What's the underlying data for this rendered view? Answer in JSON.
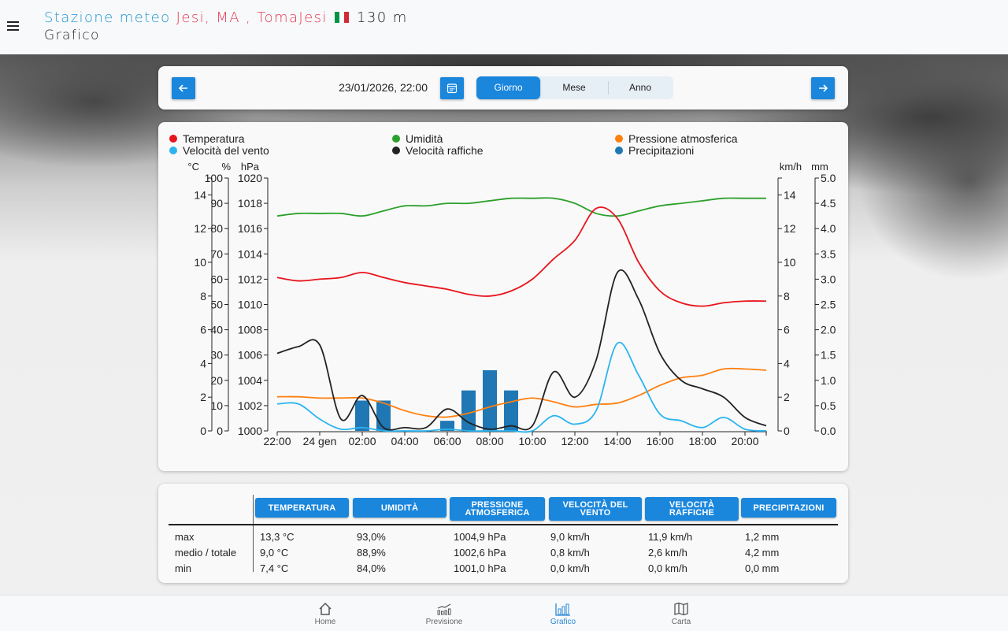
{
  "header": {
    "prefix": "Stazione meteo",
    "location": "Jesi, MA , TomaJesi",
    "flag_colors": [
      "#009246",
      "#ffffff",
      "#ce2b37"
    ],
    "altitude": "130 m",
    "page_title": "Grafico",
    "menu_icon": "hamburger-menu-icon"
  },
  "navigator": {
    "prev_icon": "arrow-left-icon",
    "next_icon": "arrow-right-icon",
    "calendar_icon": "calendar-icon",
    "date": "23/01/2026, 22:00",
    "periods": [
      {
        "label": "Giorno",
        "active": true
      },
      {
        "label": "Mese",
        "active": false
      },
      {
        "label": "Anno",
        "active": false
      }
    ]
  },
  "legend": [
    {
      "label": "Temperatura",
      "color": "#e8141c"
    },
    {
      "label": "Umidità",
      "color": "#2ca02c"
    },
    {
      "label": "Pressione atmosferica",
      "color": "#ff7f0e"
    },
    {
      "label": "Velocità del vento",
      "color": "#2bb4f0"
    },
    {
      "label": "Velocità raffiche",
      "color": "#222222"
    },
    {
      "label": "Precipitazioni",
      "color": "#1f77b4"
    }
  ],
  "chart_data": {
    "type": "line",
    "title": "",
    "x": [
      "22:00",
      "23:00",
      "24 gen",
      "01:00",
      "02:00",
      "03:00",
      "04:00",
      "05:00",
      "06:00",
      "07:00",
      "08:00",
      "09:00",
      "10:00",
      "11:00",
      "12:00",
      "13:00",
      "14:00",
      "15:00",
      "16:00",
      "17:00",
      "18:00",
      "19:00",
      "20:00",
      "21:00"
    ],
    "x_tick_labels": [
      "22:00",
      "24 gen",
      "02:00",
      "04:00",
      "06:00",
      "08:00",
      "10:00",
      "12:00",
      "14:00",
      "16:00",
      "18:00",
      "20:00"
    ],
    "axes": {
      "temperature": {
        "unit": "°C",
        "side": "left",
        "range": [
          0,
          15
        ],
        "ticks": [
          0,
          2,
          4,
          6,
          8,
          10,
          12,
          14
        ]
      },
      "humidity": {
        "unit": "%",
        "side": "left",
        "range": [
          0,
          100
        ],
        "ticks": [
          0,
          10,
          20,
          30,
          40,
          50,
          60,
          70,
          80,
          90,
          100
        ]
      },
      "pressure": {
        "unit": "hPa",
        "side": "left",
        "range": [
          1000,
          1020
        ],
        "ticks": [
          1000,
          1002,
          1004,
          1006,
          1008,
          1010,
          1012,
          1014,
          1016,
          1018,
          1020
        ]
      },
      "wind": {
        "unit": "km/h",
        "side": "right",
        "range": [
          0,
          15
        ],
        "ticks": [
          0,
          2,
          4,
          6,
          8,
          10,
          12,
          14
        ]
      },
      "precip": {
        "unit": "mm",
        "side": "right",
        "range": [
          0,
          5
        ],
        "ticks": [
          "0.0",
          "0.5",
          "1.0",
          "1.5",
          "2.0",
          "2.5",
          "3.0",
          "3.5",
          "4.0",
          "4.5",
          "5.0"
        ]
      }
    },
    "series": [
      {
        "name": "Temperatura",
        "axis": "temperature",
        "kind": "line",
        "color": "#e8141c",
        "values": [
          9.1,
          8.9,
          9.0,
          9.1,
          9.4,
          9.1,
          8.8,
          8.6,
          8.4,
          8.1,
          8.0,
          8.3,
          9.0,
          10.2,
          11.3,
          13.2,
          12.6,
          10.0,
          8.3,
          7.6,
          7.4,
          7.6,
          7.7,
          7.7
        ]
      },
      {
        "name": "Umidità",
        "axis": "humidity",
        "kind": "line",
        "color": "#2ca02c",
        "values": [
          85,
          86,
          86,
          86,
          85,
          87,
          89,
          89,
          90,
          90,
          91,
          92,
          92,
          92,
          90,
          86,
          85,
          87,
          89,
          90,
          91,
          92,
          92,
          92
        ]
      },
      {
        "name": "Pressione atmosferica",
        "axis": "pressure",
        "kind": "line",
        "color": "#ff7f0e",
        "values": [
          1002.7,
          1002.7,
          1002.6,
          1002.6,
          1002.6,
          1002.2,
          1001.6,
          1001.2,
          1001.1,
          1001.4,
          1001.9,
          1002.3,
          1002.6,
          1002.3,
          1001.9,
          1002.1,
          1002.2,
          1002.8,
          1003.6,
          1004.2,
          1004.4,
          1004.9,
          1004.9,
          1004.8
        ]
      },
      {
        "name": "Velocità del vento",
        "axis": "wind",
        "kind": "line",
        "color": "#2bb4f0",
        "values": [
          1.6,
          1.6,
          0.7,
          0.1,
          0.2,
          0.0,
          0.0,
          0.0,
          0.1,
          0.0,
          0.0,
          0.0,
          0.0,
          0.9,
          0.4,
          1.2,
          5.2,
          3.3,
          1.0,
          0.6,
          0.2,
          0.8,
          0.1,
          0.0
        ]
      },
      {
        "name": "Velocità raffiche",
        "axis": "wind",
        "kind": "line",
        "color": "#222222",
        "values": [
          4.6,
          5.0,
          5.1,
          0.7,
          2.1,
          0.2,
          0.2,
          0.2,
          1.3,
          0.5,
          0.1,
          0.3,
          0.3,
          3.5,
          2.0,
          4.2,
          9.4,
          7.8,
          4.6,
          3.0,
          2.5,
          2.0,
          0.8,
          0.3
        ]
      },
      {
        "name": "Precipitazioni",
        "axis": "precip",
        "kind": "bar",
        "color": "#1f77b4",
        "values": [
          0.0,
          0.0,
          0.0,
          0.0,
          0.6,
          0.6,
          0.0,
          0.0,
          0.2,
          0.8,
          1.2,
          0.8,
          0.0,
          0.0,
          0.0,
          0.0,
          0.0,
          0.0,
          0.0,
          0.0,
          0.0,
          0.0,
          0.0,
          0.0
        ]
      }
    ]
  },
  "stats": {
    "columns": [
      "TEMPERATURA",
      "UMIDITÀ",
      "PRESSIONE ATMOSFERICA",
      "VELOCITÀ DEL VENTO",
      "VELOCITÀ RAFFICHE",
      "PRECIPITAZIONI"
    ],
    "rows": [
      {
        "label": "max",
        "values": [
          "13,3 °C",
          "93,0%",
          "1004,9 hPa",
          "9,0 km/h",
          "11,9 km/h",
          "1,2 mm"
        ]
      },
      {
        "label": "medio / totale",
        "values": [
          "9,0 °C",
          "88,9%",
          "1002,6 hPa",
          "0,8 km/h",
          "2,6 km/h",
          "4,2 mm"
        ]
      },
      {
        "label": "min",
        "values": [
          "7,4 °C",
          "84,0%",
          "1001,0 hPa",
          "0,0 km/h",
          "0,0 km/h",
          "0,0 mm"
        ]
      }
    ]
  },
  "bottom_nav": [
    {
      "label": "Home",
      "icon": "home-icon",
      "active": false
    },
    {
      "label": "Previsione",
      "icon": "forecast-chart-icon",
      "active": false
    },
    {
      "label": "Grafico",
      "icon": "bar-chart-icon",
      "active": true
    },
    {
      "label": "Carta",
      "icon": "map-icon",
      "active": false
    }
  ]
}
